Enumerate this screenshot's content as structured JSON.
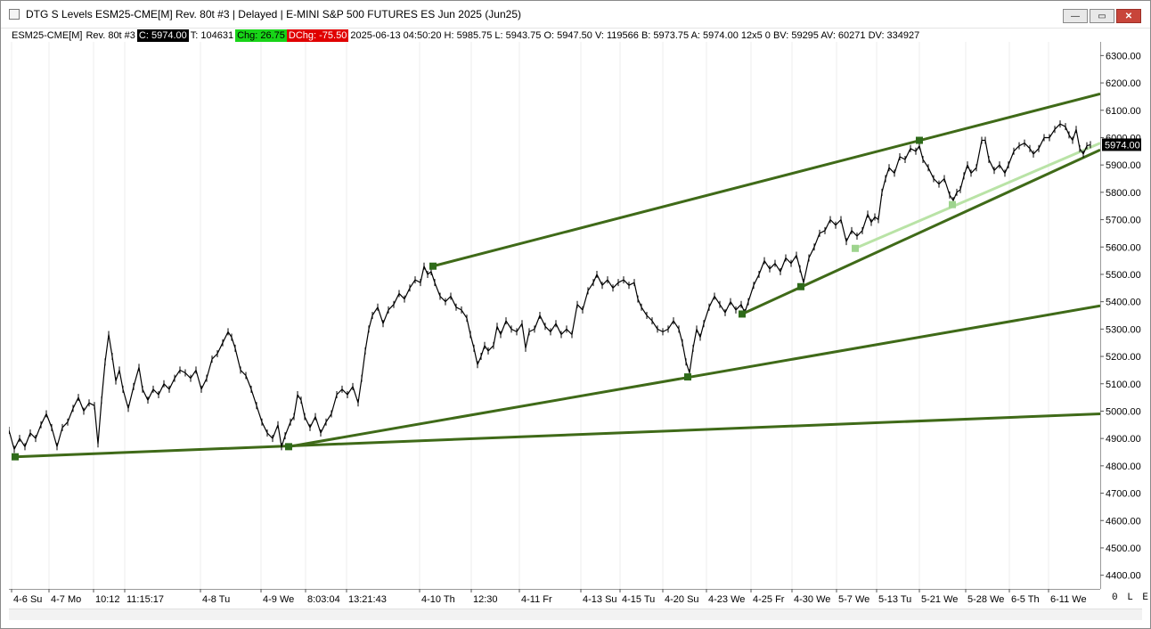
{
  "window": {
    "title": "DTG S Levels ESM25-CME[M]  Rev. 80t #3 | Delayed | E-MINI S&P 500 FUTURES ES Jun 2025 (Jun25)",
    "buttons": {
      "minimize": "—",
      "restore": "▭",
      "close": "✕"
    }
  },
  "infobar": {
    "symbol": "ESM25-CME[M]",
    "bar_type": "Rev. 80t #3",
    "close": "C: 5974.00",
    "ticks": "T: 104631",
    "chg": "Chg: 26.75",
    "dchg": "DChg: -75.50",
    "stats": "2025-06-13 04:50:20 H: 5985.75 L: 5943.75 O: 5947.50 V: 119566 B: 5973.75 A: 5974.00 12x5 0 BV: 59295 AV: 60271 DV: 334927"
  },
  "bottom_right": "0 L E",
  "colors": {
    "price": "#000000",
    "trendline": "#3f6a18",
    "light_trendline": "#b9e3a6",
    "anchor": "#2f6b1a",
    "light_anchor": "#9ed48e",
    "last_price_bg": "#000000"
  },
  "chart_data": {
    "type": "line",
    "title": "",
    "ylim": [
      4350,
      6350
    ],
    "y_ticks": [
      4400,
      4500,
      4600,
      4700,
      4800,
      4900,
      5000,
      5100,
      5200,
      5300,
      5400,
      5500,
      5600,
      5700,
      5800,
      5900,
      6000,
      6100,
      6200,
      6300
    ],
    "y_tick_labels": [
      "4400.00",
      "4500.00",
      "4600.00",
      "4700.00",
      "4800.00",
      "4900.00",
      "5000.00",
      "5100.00",
      "5200.00",
      "5300.00",
      "5400.00",
      "5500.00",
      "5600.00",
      "5700.00",
      "5800.00",
      "5900.00",
      "6000.00",
      "6100.00",
      "6200.00",
      "6300.00"
    ],
    "last_price_label": "5974.00",
    "last_price": 5974,
    "xlim": [
      0,
      1225
    ],
    "x_ticks": [
      {
        "x": 3,
        "label": "4-6 Su"
      },
      {
        "x": 45,
        "label": "4-7 Mo"
      },
      {
        "x": 95,
        "label": "10:12"
      },
      {
        "x": 130,
        "label": "11:15:17"
      },
      {
        "x": 215,
        "label": "4-8 Tu"
      },
      {
        "x": 283,
        "label": "4-9 We"
      },
      {
        "x": 333,
        "label": "8:03:04"
      },
      {
        "x": 379,
        "label": "13:21:43"
      },
      {
        "x": 461,
        "label": "4-10 Th"
      },
      {
        "x": 519,
        "label": "12:30"
      },
      {
        "x": 573,
        "label": "4-11 Fr"
      },
      {
        "x": 642,
        "label": "4-13 Su"
      },
      {
        "x": 686,
        "label": "4-15 Tu"
      },
      {
        "x": 734,
        "label": "4-20 Su"
      },
      {
        "x": 783,
        "label": "4-23 We"
      },
      {
        "x": 833,
        "label": "4-25 Fr"
      },
      {
        "x": 879,
        "label": "4-30 We"
      },
      {
        "x": 929,
        "label": "5-7 We"
      },
      {
        "x": 974,
        "label": "5-13 Tu"
      },
      {
        "x": 1022,
        "label": "5-21 We"
      },
      {
        "x": 1074,
        "label": "5-28 We"
      },
      {
        "x": 1123,
        "label": "6-5 Th"
      },
      {
        "x": 1167,
        "label": "6-11 We"
      }
    ],
    "series": [
      {
        "values": [
          [
            0,
            4930
          ],
          [
            6,
            4860
          ],
          [
            12,
            4900
          ],
          [
            18,
            4870
          ],
          [
            24,
            4920
          ],
          [
            30,
            4900
          ],
          [
            36,
            4950
          ],
          [
            42,
            4990
          ],
          [
            48,
            4940
          ],
          [
            54,
            4870
          ],
          [
            60,
            4940
          ],
          [
            66,
            4960
          ],
          [
            72,
            5010
          ],
          [
            78,
            5050
          ],
          [
            84,
            5000
          ],
          [
            90,
            5030
          ],
          [
            96,
            5020
          ],
          [
            100,
            4880
          ],
          [
            104,
            5040
          ],
          [
            108,
            5180
          ],
          [
            112,
            5280
          ],
          [
            116,
            5200
          ],
          [
            120,
            5110
          ],
          [
            124,
            5150
          ],
          [
            128,
            5080
          ],
          [
            134,
            5010
          ],
          [
            140,
            5090
          ],
          [
            146,
            5160
          ],
          [
            150,
            5080
          ],
          [
            156,
            5040
          ],
          [
            162,
            5080
          ],
          [
            168,
            5060
          ],
          [
            174,
            5100
          ],
          [
            180,
            5080
          ],
          [
            186,
            5120
          ],
          [
            192,
            5150
          ],
          [
            198,
            5140
          ],
          [
            204,
            5120
          ],
          [
            210,
            5150
          ],
          [
            216,
            5080
          ],
          [
            222,
            5120
          ],
          [
            228,
            5190
          ],
          [
            234,
            5210
          ],
          [
            240,
            5250
          ],
          [
            246,
            5290
          ],
          [
            250,
            5270
          ],
          [
            254,
            5230
          ],
          [
            260,
            5150
          ],
          [
            266,
            5130
          ],
          [
            272,
            5080
          ],
          [
            278,
            5020
          ],
          [
            284,
            4960
          ],
          [
            290,
            4920
          ],
          [
            296,
            4900
          ],
          [
            302,
            4950
          ],
          [
            306,
            4870
          ],
          [
            310,
            4910
          ],
          [
            316,
            4960
          ],
          [
            320,
            4980
          ],
          [
            324,
            5060
          ],
          [
            328,
            5040
          ],
          [
            332,
            4980
          ],
          [
            338,
            4940
          ],
          [
            344,
            4980
          ],
          [
            350,
            4920
          ],
          [
            356,
            4960
          ],
          [
            362,
            4990
          ],
          [
            368,
            5060
          ],
          [
            374,
            5080
          ],
          [
            380,
            5060
          ],
          [
            386,
            5090
          ],
          [
            392,
            5030
          ],
          [
            396,
            5120
          ],
          [
            400,
            5220
          ],
          [
            404,
            5300
          ],
          [
            408,
            5350
          ],
          [
            414,
            5380
          ],
          [
            420,
            5320
          ],
          [
            426,
            5370
          ],
          [
            432,
            5390
          ],
          [
            438,
            5430
          ],
          [
            444,
            5410
          ],
          [
            450,
            5450
          ],
          [
            456,
            5480
          ],
          [
            462,
            5470
          ],
          [
            466,
            5530
          ],
          [
            470,
            5500
          ],
          [
            474,
            5510
          ],
          [
            478,
            5470
          ],
          [
            484,
            5420
          ],
          [
            490,
            5400
          ],
          [
            496,
            5420
          ],
          [
            502,
            5380
          ],
          [
            508,
            5370
          ],
          [
            514,
            5340
          ],
          [
            518,
            5280
          ],
          [
            522,
            5230
          ],
          [
            526,
            5170
          ],
          [
            530,
            5200
          ],
          [
            534,
            5240
          ],
          [
            538,
            5220
          ],
          [
            544,
            5240
          ],
          [
            548,
            5310
          ],
          [
            552,
            5280
          ],
          [
            558,
            5330
          ],
          [
            564,
            5300
          ],
          [
            570,
            5290
          ],
          [
            576,
            5320
          ],
          [
            580,
            5230
          ],
          [
            584,
            5290
          ],
          [
            590,
            5300
          ],
          [
            596,
            5350
          ],
          [
            602,
            5310
          ],
          [
            608,
            5290
          ],
          [
            614,
            5320
          ],
          [
            620,
            5280
          ],
          [
            626,
            5300
          ],
          [
            632,
            5280
          ],
          [
            638,
            5390
          ],
          [
            644,
            5370
          ],
          [
            650,
            5440
          ],
          [
            656,
            5470
          ],
          [
            660,
            5500
          ],
          [
            666,
            5460
          ],
          [
            672,
            5480
          ],
          [
            678,
            5450
          ],
          [
            684,
            5470
          ],
          [
            690,
            5480
          ],
          [
            696,
            5460
          ],
          [
            702,
            5470
          ],
          [
            706,
            5410
          ],
          [
            710,
            5380
          ],
          [
            716,
            5350
          ],
          [
            722,
            5330
          ],
          [
            728,
            5300
          ],
          [
            734,
            5290
          ],
          [
            740,
            5300
          ],
          [
            746,
            5330
          ],
          [
            752,
            5300
          ],
          [
            756,
            5250
          ],
          [
            760,
            5180
          ],
          [
            764,
            5140
          ],
          [
            768,
            5230
          ],
          [
            772,
            5300
          ],
          [
            776,
            5270
          ],
          [
            780,
            5320
          ],
          [
            786,
            5380
          ],
          [
            792,
            5420
          ],
          [
            798,
            5390
          ],
          [
            804,
            5360
          ],
          [
            810,
            5400
          ],
          [
            816,
            5370
          ],
          [
            822,
            5390
          ],
          [
            826,
            5360
          ],
          [
            830,
            5400
          ],
          [
            836,
            5460
          ],
          [
            842,
            5500
          ],
          [
            848,
            5550
          ],
          [
            854,
            5520
          ],
          [
            860,
            5540
          ],
          [
            866,
            5510
          ],
          [
            872,
            5560
          ],
          [
            878,
            5540
          ],
          [
            884,
            5570
          ],
          [
            888,
            5520
          ],
          [
            892,
            5470
          ],
          [
            898,
            5560
          ],
          [
            904,
            5600
          ],
          [
            910,
            5650
          ],
          [
            916,
            5660
          ],
          [
            922,
            5700
          ],
          [
            928,
            5680
          ],
          [
            934,
            5700
          ],
          [
            940,
            5620
          ],
          [
            946,
            5660
          ],
          [
            952,
            5640
          ],
          [
            958,
            5660
          ],
          [
            964,
            5720
          ],
          [
            968,
            5690
          ],
          [
            972,
            5710
          ],
          [
            976,
            5700
          ],
          [
            980,
            5800
          ],
          [
            984,
            5850
          ],
          [
            988,
            5890
          ],
          [
            994,
            5870
          ],
          [
            1000,
            5930
          ],
          [
            1006,
            5920
          ],
          [
            1012,
            5960
          ],
          [
            1018,
            5950
          ],
          [
            1022,
            5970
          ],
          [
            1026,
            5920
          ],
          [
            1032,
            5890
          ],
          [
            1038,
            5850
          ],
          [
            1044,
            5830
          ],
          [
            1050,
            5850
          ],
          [
            1056,
            5790
          ],
          [
            1060,
            5770
          ],
          [
            1064,
            5800
          ],
          [
            1068,
            5810
          ],
          [
            1072,
            5860
          ],
          [
            1076,
            5900
          ],
          [
            1080,
            5870
          ],
          [
            1086,
            5890
          ],
          [
            1092,
            5990
          ],
          [
            1096,
            5990
          ],
          [
            1100,
            5920
          ],
          [
            1106,
            5880
          ],
          [
            1112,
            5900
          ],
          [
            1118,
            5870
          ],
          [
            1122,
            5900
          ],
          [
            1128,
            5950
          ],
          [
            1134,
            5970
          ],
          [
            1140,
            5980
          ],
          [
            1146,
            5960
          ],
          [
            1150,
            5940
          ],
          [
            1156,
            5960
          ],
          [
            1162,
            6000
          ],
          [
            1168,
            6000
          ],
          [
            1174,
            6030
          ],
          [
            1180,
            6050
          ],
          [
            1186,
            6040
          ],
          [
            1190,
            6010
          ],
          [
            1194,
            5990
          ],
          [
            1198,
            6030
          ],
          [
            1202,
            5960
          ],
          [
            1206,
            5940
          ],
          [
            1210,
            5970
          ],
          [
            1214,
            5974
          ]
        ]
      }
    ],
    "trendlines": [
      {
        "x1": 7,
        "y1": 4833,
        "x2": 1225,
        "y2": 4990,
        "style": "dark"
      },
      {
        "x1": 314,
        "y1": 4870,
        "x2": 1225,
        "y2": 5385,
        "style": "dark"
      },
      {
        "x1": 476,
        "y1": 5530,
        "x2": 1225,
        "y2": 6160,
        "style": "dark"
      },
      {
        "x1": 823,
        "y1": 5355,
        "x2": 1225,
        "y2": 5955,
        "style": "dark"
      },
      {
        "x1": 950,
        "y1": 5595,
        "x2": 1225,
        "y2": 5980,
        "style": "light"
      }
    ],
    "anchors": [
      {
        "x": 7,
        "y": 4833,
        "style": "dark"
      },
      {
        "x": 314,
        "y": 4870,
        "style": "dark"
      },
      {
        "x": 476,
        "y": 5530,
        "style": "dark"
      },
      {
        "x": 762,
        "y": 5125,
        "style": "dark"
      },
      {
        "x": 823,
        "y": 5355,
        "style": "dark"
      },
      {
        "x": 889,
        "y": 5455,
        "style": "dark"
      },
      {
        "x": 1022,
        "y": 5990,
        "style": "dark"
      },
      {
        "x": 950,
        "y": 5595,
        "style": "light"
      },
      {
        "x": 1059,
        "y": 5755,
        "style": "light"
      }
    ]
  }
}
